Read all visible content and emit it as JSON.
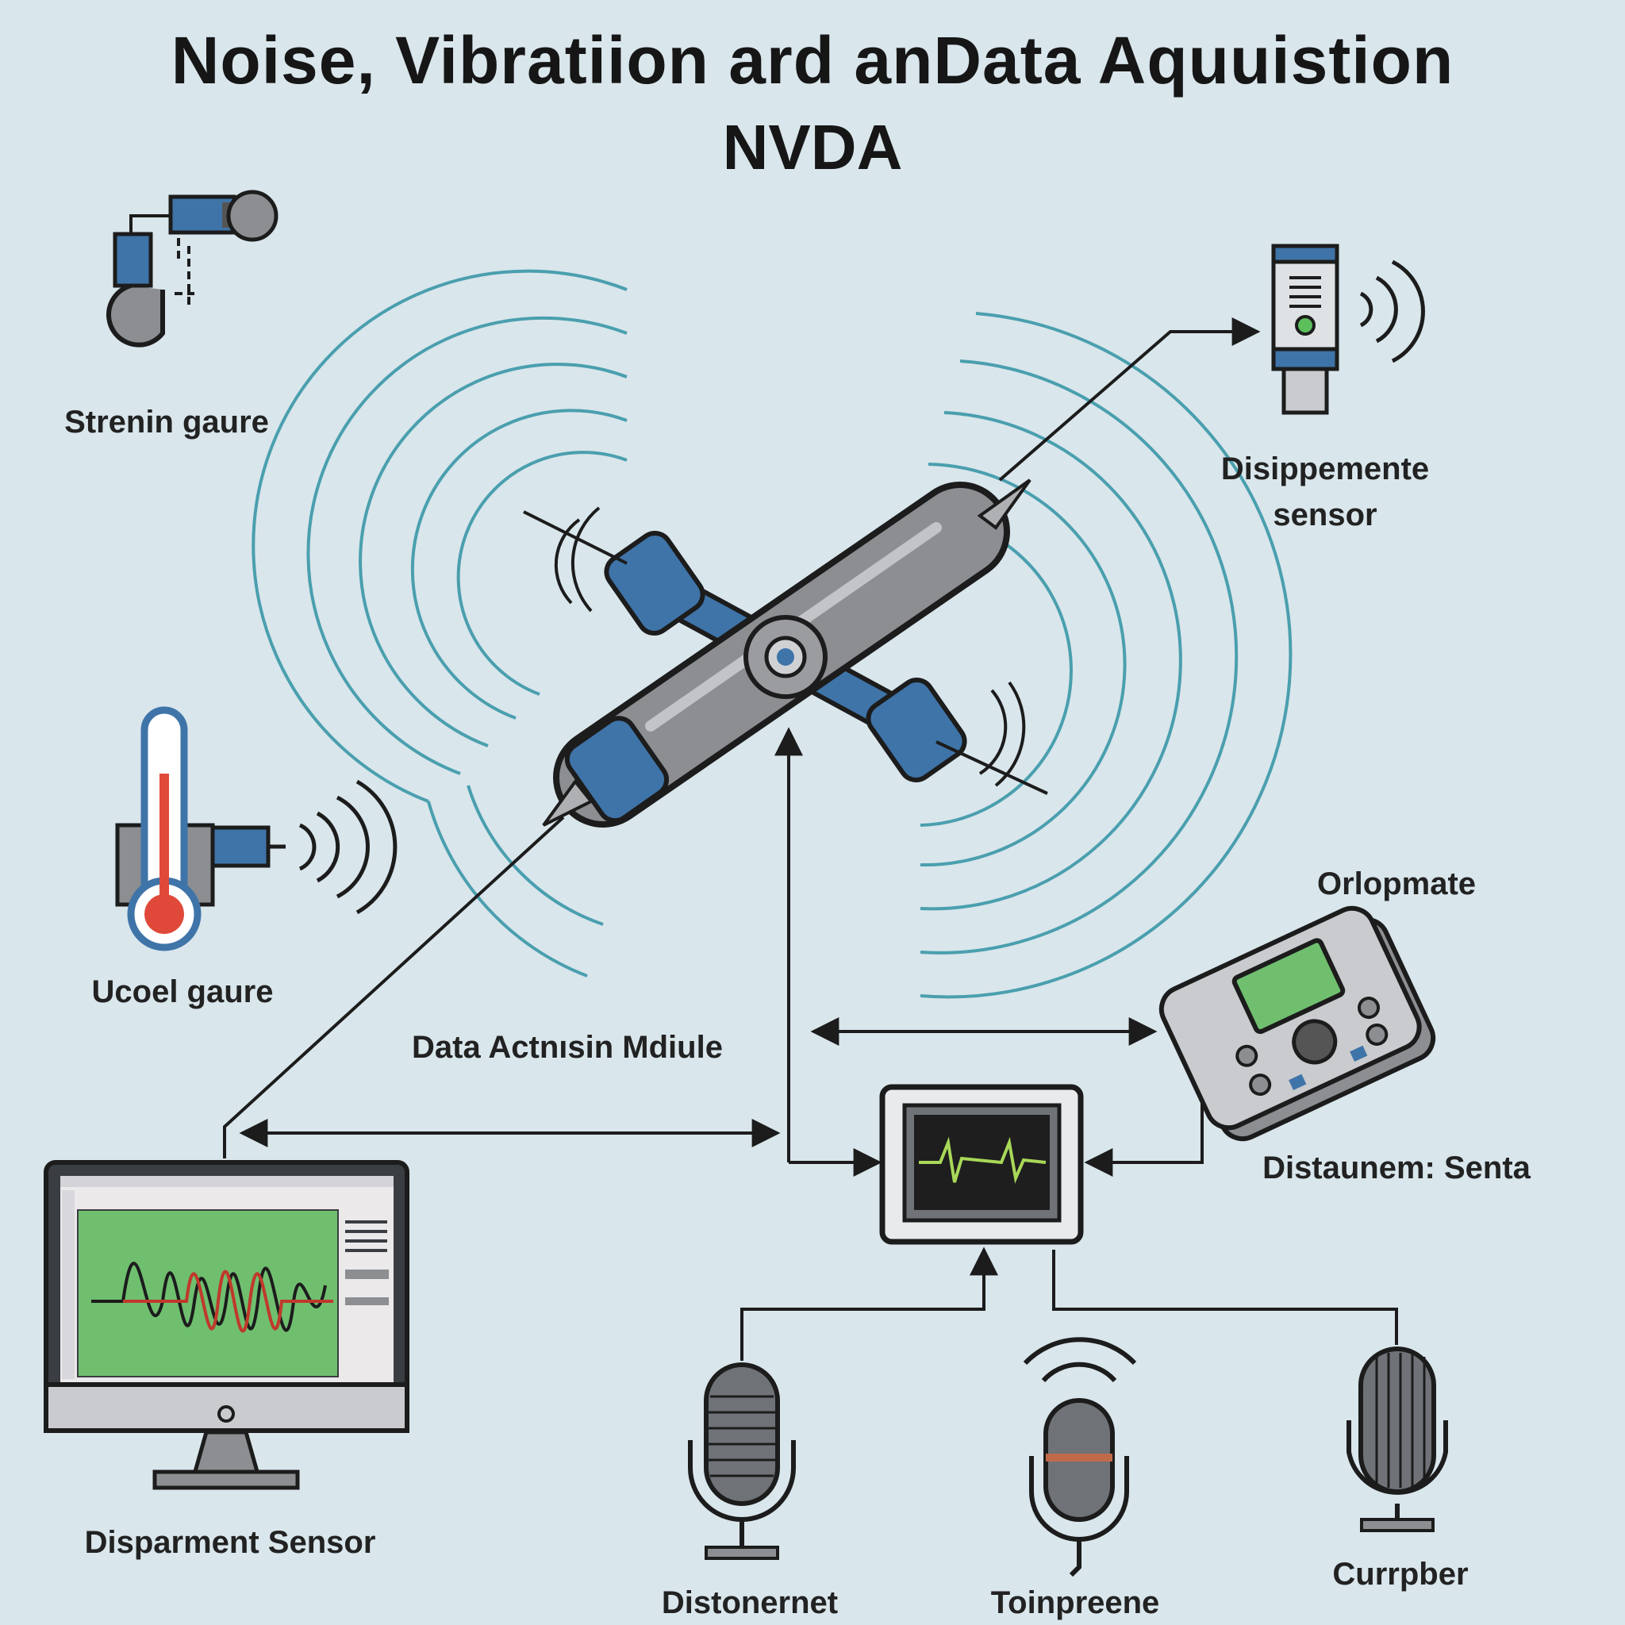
{
  "title": {
    "line1": "Noise, Vibratiion ard anData Aquuistion",
    "line2": "NVDA"
  },
  "labels": {
    "strain_gauge": "Strenin gaure",
    "temperature_gauge": "Ucoel gaure",
    "displacement_sensor_top": "Disippemente sensor",
    "handheld_device": "Orlopmate",
    "data_module": "Data Actnısin Mdiule",
    "hub_device": "Distaunem: Senta",
    "monitor": "Disparment Sensor",
    "mic_left": "Distonernet",
    "mic_center": "Toinpreene",
    "mic_right": "Currpber"
  },
  "colors": {
    "background": "#d9e6ec",
    "accent_blue": "#3f74a8",
    "vibration_waves": "#4a9fae",
    "line": "#1c1c1c",
    "chart_green": "#6fbf6f",
    "thermo_red": "#e0493a"
  },
  "icons": [
    "strain-gauge-icon",
    "thermometer-icon",
    "displacement-sensor-icon",
    "vibrating-shaker-icon",
    "handheld-device-icon",
    "oscilloscope-hub-icon",
    "desktop-monitor-icon",
    "microphone-icon"
  ]
}
